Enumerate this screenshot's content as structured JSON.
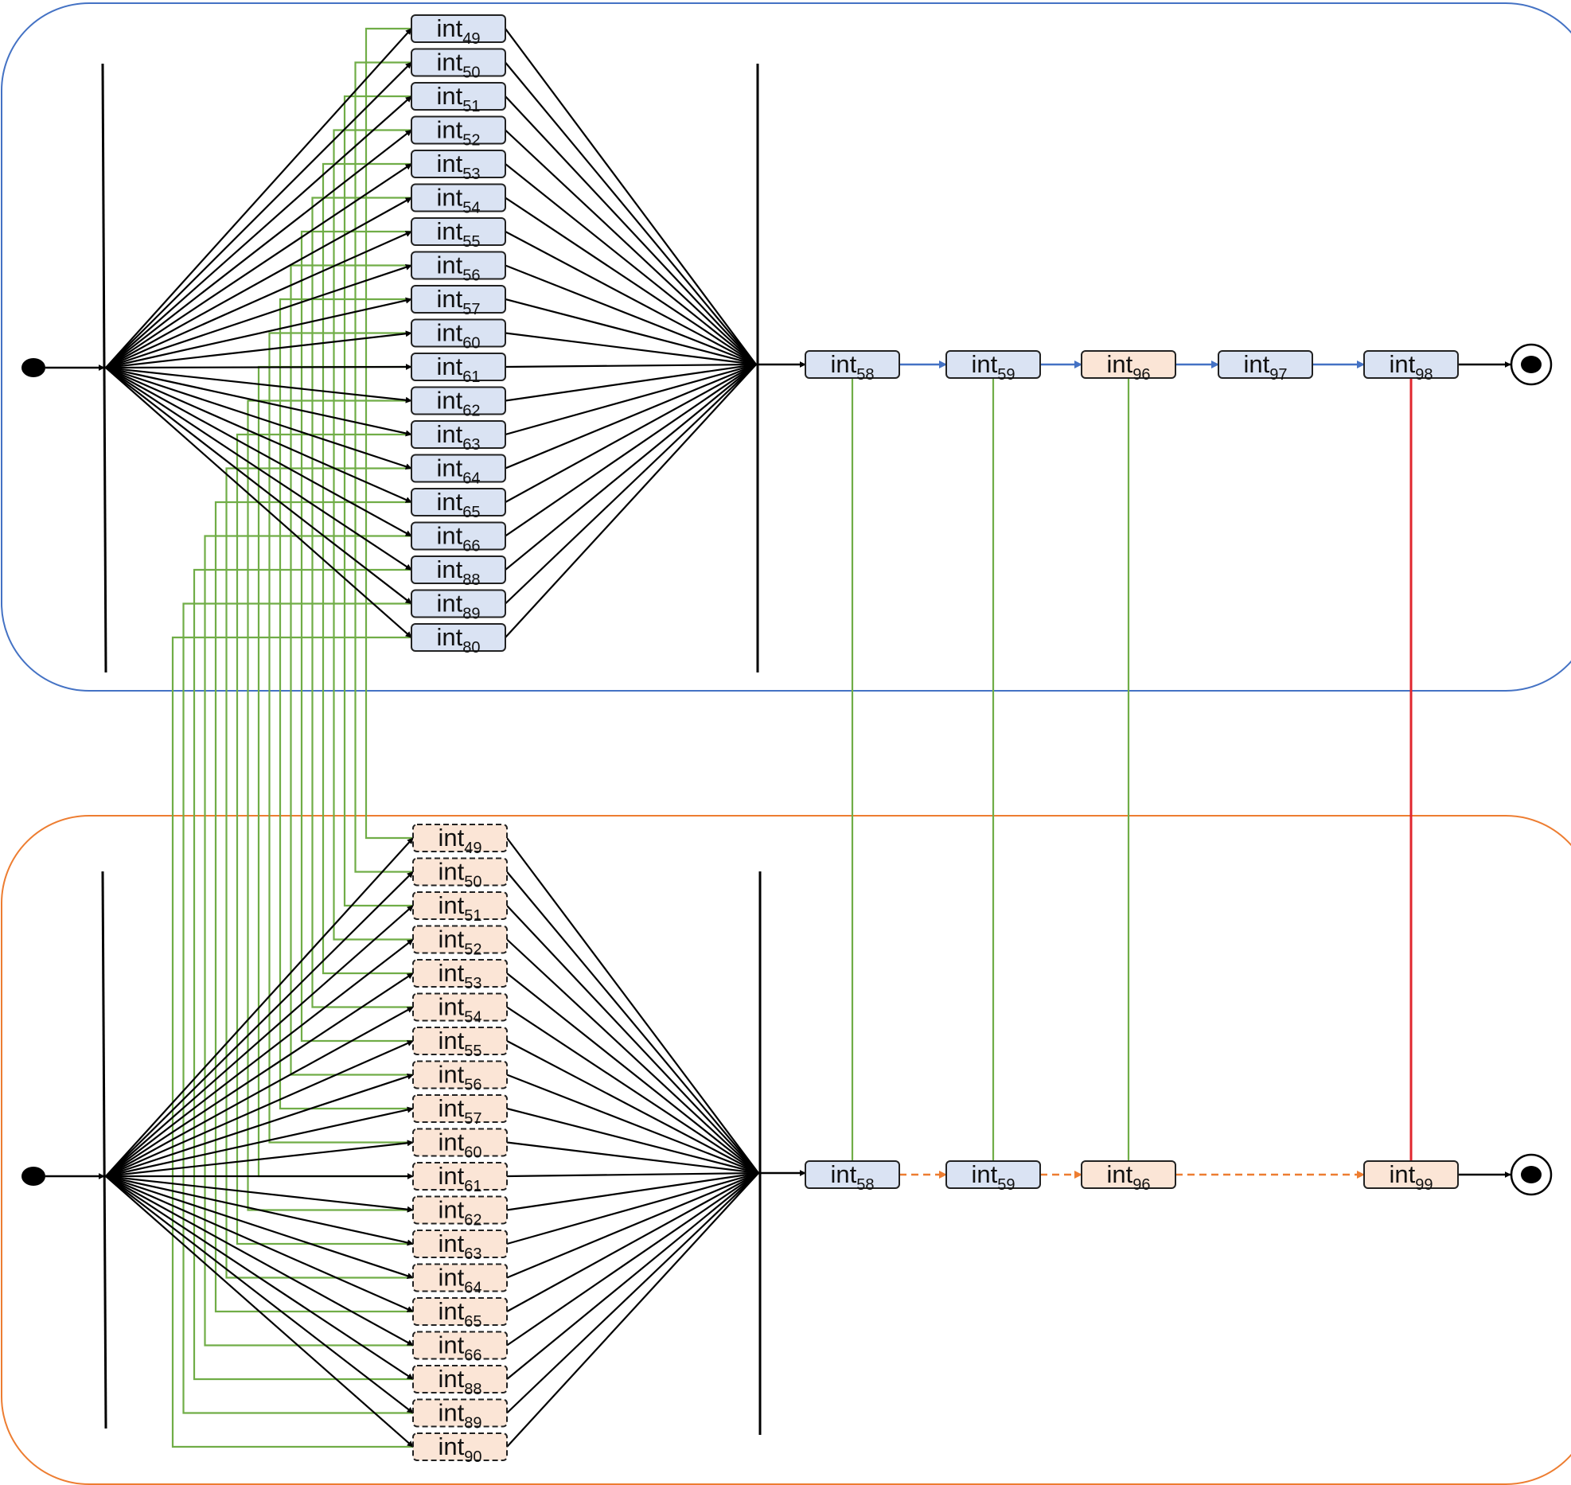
{
  "colors": {
    "top_container": "#4472C4",
    "bottom_container": "#ED7D31",
    "blue_node": "#DAE3F3",
    "orange_node": "#FBE5D6",
    "mapping_line": "#70AD47",
    "mismatch_line": "#E0262E",
    "top_sequence_arrow": "#4472C4",
    "bottom_sequence_arrow": "#ED7D31",
    "flow_arrow": "#000000"
  },
  "top_process": {
    "parallel_nodes": [
      {
        "base": "int",
        "sub": "49"
      },
      {
        "base": "int",
        "sub": "50"
      },
      {
        "base": "int",
        "sub": "51"
      },
      {
        "base": "int",
        "sub": "52"
      },
      {
        "base": "int",
        "sub": "53"
      },
      {
        "base": "int",
        "sub": "54"
      },
      {
        "base": "int",
        "sub": "55"
      },
      {
        "base": "int",
        "sub": "56"
      },
      {
        "base": "int",
        "sub": "57"
      },
      {
        "base": "int",
        "sub": "60"
      },
      {
        "base": "int",
        "sub": "61"
      },
      {
        "base": "int",
        "sub": "62"
      },
      {
        "base": "int",
        "sub": "63"
      },
      {
        "base": "int",
        "sub": "64"
      },
      {
        "base": "int",
        "sub": "65"
      },
      {
        "base": "int",
        "sub": "66"
      },
      {
        "base": "int",
        "sub": "88"
      },
      {
        "base": "int",
        "sub": "89"
      },
      {
        "base": "int",
        "sub": "80"
      }
    ],
    "sequence_nodes": [
      {
        "base": "int",
        "sub": "58",
        "style": "blue"
      },
      {
        "base": "int",
        "sub": "59",
        "style": "blue"
      },
      {
        "base": "int",
        "sub": "96",
        "style": "orange"
      },
      {
        "base": "int",
        "sub": "97",
        "style": "blue"
      },
      {
        "base": "int",
        "sub": "98",
        "style": "blue"
      }
    ]
  },
  "bottom_process": {
    "parallel_nodes": [
      {
        "base": "int",
        "sub": "49"
      },
      {
        "base": "int",
        "sub": "50"
      },
      {
        "base": "int",
        "sub": "51"
      },
      {
        "base": "int",
        "sub": "52"
      },
      {
        "base": "int",
        "sub": "53"
      },
      {
        "base": "int",
        "sub": "54"
      },
      {
        "base": "int",
        "sub": "55"
      },
      {
        "base": "int",
        "sub": "56"
      },
      {
        "base": "int",
        "sub": "57"
      },
      {
        "base": "int",
        "sub": "60"
      },
      {
        "base": "int",
        "sub": "61"
      },
      {
        "base": "int",
        "sub": "62"
      },
      {
        "base": "int",
        "sub": "63"
      },
      {
        "base": "int",
        "sub": "64"
      },
      {
        "base": "int",
        "sub": "65"
      },
      {
        "base": "int",
        "sub": "66"
      },
      {
        "base": "int",
        "sub": "88"
      },
      {
        "base": "int",
        "sub": "89"
      },
      {
        "base": "int",
        "sub": "90"
      }
    ],
    "sequence_nodes": [
      {
        "base": "int",
        "sub": "58",
        "style": "blue"
      },
      {
        "base": "int",
        "sub": "59",
        "style": "blue"
      },
      {
        "base": "int",
        "sub": "96",
        "style": "orange"
      },
      {
        "base": "int",
        "sub": "99",
        "style": "orange"
      }
    ]
  }
}
